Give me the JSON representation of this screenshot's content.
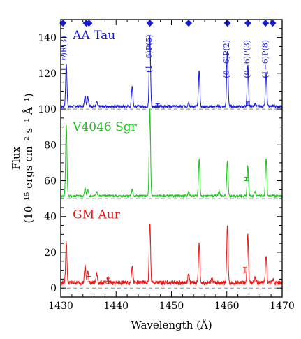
{
  "chart_data": {
    "type": "line",
    "xlabel": "Wavelength (Å)",
    "ylabel_line1": "Flux",
    "ylabel_line2": "(10⁻¹⁵ ergs cm⁻² s⁻¹ Å⁻¹)",
    "xlim": [
      1430,
      1470
    ],
    "ylim": [
      -5,
      150
    ],
    "x_ticks": [
      1430,
      1440,
      1450,
      1460,
      1470
    ],
    "x_tick_labels": [
      "1430",
      "1440",
      "1450",
      "1460",
      "1470"
    ],
    "y_ticks": [
      0,
      20,
      40,
      60,
      80,
      100,
      120,
      140
    ],
    "y_tick_labels": [
      "0",
      "20",
      "40",
      "60",
      "80",
      "100",
      "120",
      "140"
    ],
    "colors": {
      "AA Tau": "#1a1ad6",
      "V4046 Sgr": "#1ec21e",
      "GM Aur": "#e61919",
      "axes": "#000000",
      "dashed": "#888888"
    },
    "series": [
      {
        "name": "AA Tau",
        "offset": 100,
        "continuum": 1.5,
        "lines": [
          {
            "x": 1431.0,
            "y": 125
          },
          {
            "x": 1434.4,
            "y": 108
          },
          {
            "x": 1434.9,
            "y": 107
          },
          {
            "x": 1436.5,
            "y": 104
          },
          {
            "x": 1442.9,
            "y": 113
          },
          {
            "x": 1446.1,
            "y": 141
          },
          {
            "x": 1453.1,
            "y": 104
          },
          {
            "x": 1455.0,
            "y": 121
          },
          {
            "x": 1460.1,
            "y": 133
          },
          {
            "x": 1463.8,
            "y": 125
          },
          {
            "x": 1465.1,
            "y": 103
          },
          {
            "x": 1467.1,
            "y": 120
          },
          {
            "x": 1468.4,
            "y": 102
          }
        ]
      },
      {
        "name": "V4046 Sgr",
        "offset": 50,
        "continuum": 1.5,
        "lines": [
          {
            "x": 1431.0,
            "y": 92
          },
          {
            "x": 1434.4,
            "y": 56
          },
          {
            "x": 1434.9,
            "y": 55
          },
          {
            "x": 1436.5,
            "y": 54
          },
          {
            "x": 1442.9,
            "y": 55
          },
          {
            "x": 1446.1,
            "y": 100
          },
          {
            "x": 1453.1,
            "y": 54
          },
          {
            "x": 1455.0,
            "y": 72
          },
          {
            "x": 1458.6,
            "y": 55
          },
          {
            "x": 1460.1,
            "y": 71
          },
          {
            "x": 1463.8,
            "y": 68
          },
          {
            "x": 1465.1,
            "y": 54
          },
          {
            "x": 1467.1,
            "y": 73
          },
          {
            "x": 1468.4,
            "y": 52
          }
        ]
      },
      {
        "name": "GM Aur",
        "offset": 0,
        "continuum": 3,
        "lines": [
          {
            "x": 1431.0,
            "y": 26
          },
          {
            "x": 1434.4,
            "y": 13
          },
          {
            "x": 1434.9,
            "y": 10
          },
          {
            "x": 1436.5,
            "y": 8
          },
          {
            "x": 1438.5,
            "y": 6
          },
          {
            "x": 1442.9,
            "y": 13
          },
          {
            "x": 1446.1,
            "y": 37
          },
          {
            "x": 1453.1,
            "y": 8
          },
          {
            "x": 1455.0,
            "y": 25
          },
          {
            "x": 1457.3,
            "y": 6
          },
          {
            "x": 1460.1,
            "y": 35
          },
          {
            "x": 1463.8,
            "y": 30
          },
          {
            "x": 1465.1,
            "y": 6
          },
          {
            "x": 1467.1,
            "y": 18
          },
          {
            "x": 1468.4,
            "y": 5
          }
        ]
      }
    ],
    "error_bars": [
      {
        "x": 1447.5,
        "y": 102,
        "err": 1,
        "color": "#1a1ad6"
      },
      {
        "x": 1463.8,
        "y": 103,
        "err": 1,
        "color": "#1a1ad6"
      },
      {
        "x": 1463.5,
        "y": 61,
        "err": 1,
        "color": "#1ec21e"
      },
      {
        "x": 1435.1,
        "y": 5,
        "err": 1.5,
        "color": "#e61919"
      },
      {
        "x": 1438.6,
        "y": 4,
        "err": 1.5,
        "color": "#e61919"
      },
      {
        "x": 1463.3,
        "y": 10,
        "err": 1.5,
        "color": "#e61919"
      }
    ],
    "markers_y": 148,
    "markers_x": [
      1430.4,
      1434.6,
      1435.1,
      1446.1,
      1453.1,
      1460.1,
      1463.8,
      1467.0,
      1468.3
    ],
    "line_labels": [
      {
        "x": 1431.0,
        "y": 130,
        "text": "(1−6)R(3)"
      },
      {
        "x": 1446.4,
        "y": 131,
        "text": "(1−6)P(5)"
      },
      {
        "x": 1460.4,
        "y": 128,
        "text": "(0−6)P(2)"
      },
      {
        "x": 1464.1,
        "y": 128,
        "text": "(0−6)P(3)"
      },
      {
        "x": 1467.4,
        "y": 128,
        "text": "(1−6)P(8)"
      }
    ],
    "star_labels": [
      {
        "name": "AA Tau",
        "x": 1430.4,
        "y": 139
      },
      {
        "name": "V4046 Sgr",
        "x": 1430.4,
        "y": 88
      },
      {
        "name": "GM Aur",
        "x": 1430.4,
        "y": 39
      }
    ],
    "baselines_y": [
      0,
      50,
      100
    ]
  }
}
